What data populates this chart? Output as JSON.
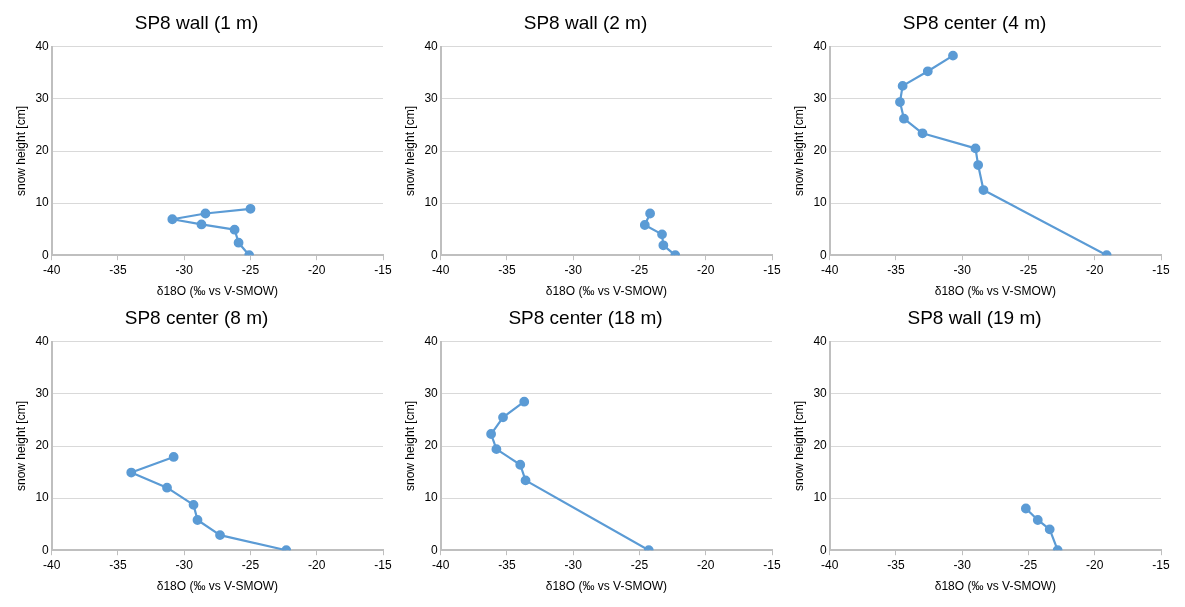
{
  "chart_data": [
    {
      "type": "line",
      "title": "SP8 wall (1 m)",
      "xlabel": "δ18O (‰ vs V-SMOW)",
      "ylabel": "snow height [cm]",
      "xlim": [
        -40,
        -15
      ],
      "xticks": [
        -40,
        -35,
        -30,
        -25,
        -20,
        -15
      ],
      "ylim": [
        0,
        40
      ],
      "yticks": [
        0,
        10,
        20,
        30,
        40
      ],
      "grid": "y",
      "marker": "circle",
      "line_style": "solid",
      "series": [
        {
          "color": "#5b9bd5",
          "x": [
            -25.1,
            -25.9,
            -26.2,
            -28.7,
            -30.9,
            -28.4,
            -25.0
          ],
          "values": [
            0,
            2.4,
            4.9,
            5.9,
            6.9,
            8.0,
            8.9
          ]
        }
      ]
    },
    {
      "type": "line",
      "title": "SP8 wall (2 m)",
      "xlabel": "δ18O (‰ vs V-SMOW)",
      "ylabel": "snow height [cm]",
      "xlim": [
        -40,
        -15
      ],
      "xticks": [
        -40,
        -35,
        -30,
        -25,
        -20,
        -15
      ],
      "ylim": [
        0,
        40
      ],
      "yticks": [
        0,
        10,
        20,
        30,
        40
      ],
      "grid": "y",
      "marker": "circle",
      "line_style": "solid",
      "series": [
        {
          "color": "#5b9bd5",
          "x": [
            -22.3,
            -23.2,
            -23.3,
            -24.6,
            -24.2
          ],
          "values": [
            0,
            1.9,
            4.0,
            5.8,
            8.0
          ]
        }
      ]
    },
    {
      "type": "line",
      "title": "SP8 center (4 m)",
      "xlabel": "δ18O (‰ vs V-SMOW)",
      "ylabel": "snow height [cm]",
      "xlim": [
        -40,
        -15
      ],
      "xticks": [
        -40,
        -35,
        -30,
        -25,
        -20,
        -15
      ],
      "ylim": [
        0,
        40
      ],
      "yticks": [
        0,
        10,
        20,
        30,
        40
      ],
      "grid": "y",
      "marker": "circle",
      "line_style": "solid",
      "series": [
        {
          "color": "#5b9bd5",
          "x": [
            -19.1,
            -28.4,
            -28.8,
            -29.0,
            -33.0,
            -34.4,
            -34.7,
            -34.5,
            -32.6,
            -30.7
          ],
          "values": [
            0,
            12.5,
            17.3,
            20.5,
            23.4,
            26.2,
            29.4,
            32.5,
            35.3,
            38.3
          ]
        }
      ]
    },
    {
      "type": "line",
      "title": "SP8 center (8 m)",
      "xlabel": "δ18O (‰ vs V-SMOW)",
      "ylabel": "snow height [cm]",
      "xlim": [
        -40,
        -15
      ],
      "xticks": [
        -40,
        -35,
        -30,
        -25,
        -20,
        -15
      ],
      "ylim": [
        0,
        40
      ],
      "yticks": [
        0,
        10,
        20,
        30,
        40
      ],
      "grid": "y",
      "marker": "circle",
      "line_style": "solid",
      "series": [
        {
          "color": "#5b9bd5",
          "x": [
            -22.3,
            -27.3,
            -29.0,
            -29.3,
            -31.3,
            -34.0,
            -30.8
          ],
          "values": [
            0,
            2.9,
            5.8,
            8.7,
            12.0,
            14.9,
            17.9
          ]
        }
      ]
    },
    {
      "type": "line",
      "title": "SP8 center (18 m)",
      "xlabel": "δ18O (‰ vs V-SMOW)",
      "ylabel": "snow height [cm]",
      "xlim": [
        -40,
        -15
      ],
      "xticks": [
        -40,
        -35,
        -30,
        -25,
        -20,
        -15
      ],
      "ylim": [
        0,
        40
      ],
      "yticks": [
        0,
        10,
        20,
        30,
        40
      ],
      "grid": "y",
      "marker": "circle",
      "line_style": "solid",
      "series": [
        {
          "color": "#5b9bd5",
          "x": [
            -24.3,
            -33.6,
            -34.0,
            -35.8,
            -36.2,
            -35.3,
            -33.7
          ],
          "values": [
            0,
            13.4,
            16.4,
            19.4,
            22.3,
            25.5,
            28.5
          ]
        }
      ]
    },
    {
      "type": "line",
      "title": "SP8 wall (19 m)",
      "xlabel": "δ18O (‰ vs V-SMOW)",
      "ylabel": "snow height [cm]",
      "xlim": [
        -40,
        -15
      ],
      "xticks": [
        -40,
        -35,
        -30,
        -25,
        -20,
        -15
      ],
      "ylim": [
        0,
        40
      ],
      "yticks": [
        0,
        10,
        20,
        30,
        40
      ],
      "grid": "y",
      "marker": "circle",
      "line_style": "solid",
      "series": [
        {
          "color": "#5b9bd5",
          "x": [
            -22.8,
            -23.4,
            -24.3,
            -25.2
          ],
          "values": [
            0,
            4.0,
            5.8,
            8.0
          ]
        }
      ]
    }
  ]
}
